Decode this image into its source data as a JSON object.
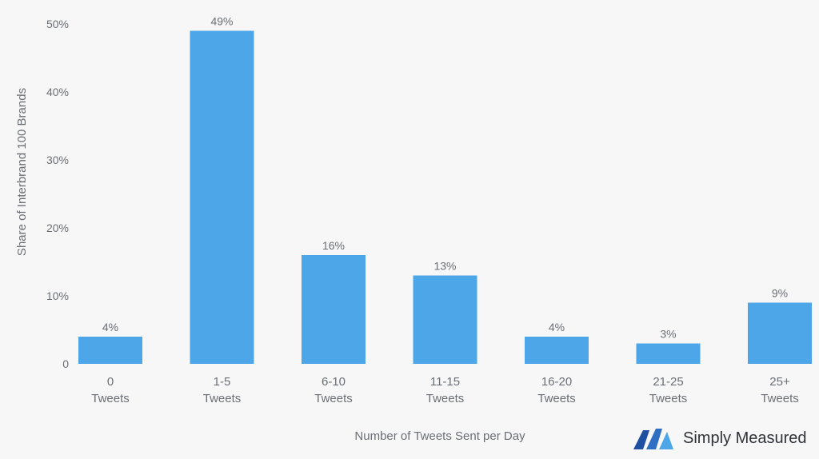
{
  "chart_data": {
    "type": "bar",
    "categories": [
      [
        "0",
        "Tweets"
      ],
      [
        "1-5",
        "Tweets"
      ],
      [
        "6-10",
        "Tweets"
      ],
      [
        "11-15",
        "Tweets"
      ],
      [
        "16-20",
        "Tweets"
      ],
      [
        "21-25",
        "Tweets"
      ],
      [
        "25+",
        "Tweets"
      ]
    ],
    "values": [
      4,
      49,
      16,
      13,
      4,
      3,
      9
    ],
    "data_labels": [
      "4%",
      "49%",
      "16%",
      "13%",
      "4%",
      "3%",
      "9%"
    ],
    "y_ticks": [
      {
        "value": 0,
        "label": "0"
      },
      {
        "value": 10,
        "label": "10%"
      },
      {
        "value": 20,
        "label": "20%"
      },
      {
        "value": 30,
        "label": "30%"
      },
      {
        "value": 40,
        "label": "40%"
      },
      {
        "value": 50,
        "label": "50%"
      }
    ],
    "ylim": [
      0,
      50
    ],
    "xlabel": "Number of Tweets Sent per Day",
    "ylabel": "Share of Interbrand 100 Brands",
    "grid": false,
    "legend": "none",
    "bar_color": "#4da6e8"
  },
  "branding": {
    "name": "Simply Measured",
    "icon": "simply-measured-logo-icon",
    "colors": [
      "#1f4fa0",
      "#4da6e8"
    ]
  }
}
